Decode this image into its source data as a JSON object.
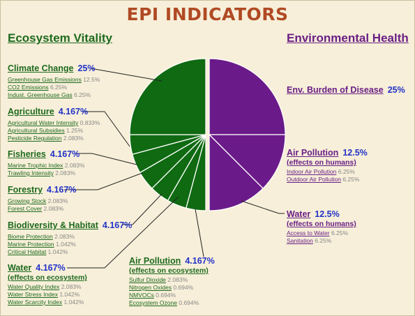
{
  "title": "EPI INDICATORS",
  "ecosystem_heading": "Ecosystem Vitality",
  "environment_heading": "Environmental Health",
  "colors": {
    "ecosystem": "#0f6a12",
    "environment": "#6b1a8a",
    "percent": "#2233c8",
    "title": "#b04a24"
  },
  "chart_data": {
    "type": "pie",
    "slices": [
      {
        "label": "Env. Burden of Disease",
        "value": 25,
        "group": "Environmental Health"
      },
      {
        "label": "Air Pollution (effects on humans)",
        "value": 12.5,
        "group": "Environmental Health"
      },
      {
        "label": "Water (effects on humans)",
        "value": 12.5,
        "group": "Environmental Health"
      },
      {
        "label": "Air Pollution (effects on ecosystem)",
        "value": 4.167,
        "group": "Ecosystem Vitality"
      },
      {
        "label": "Water (effects on ecosystem)",
        "value": 4.167,
        "group": "Ecosystem Vitality"
      },
      {
        "label": "Biodiversity & Habitat",
        "value": 4.167,
        "group": "Ecosystem Vitality"
      },
      {
        "label": "Forestry",
        "value": 4.167,
        "group": "Ecosystem Vitality"
      },
      {
        "label": "Fisheries",
        "value": 4.167,
        "group": "Ecosystem Vitality"
      },
      {
        "label": "Agriculture",
        "value": 4.167,
        "group": "Ecosystem Vitality"
      },
      {
        "label": "Climate Change",
        "value": 25,
        "group": "Ecosystem Vitality"
      }
    ]
  },
  "ecosystem": [
    {
      "name": "Climate Change",
      "pct": "25%",
      "items": [
        {
          "name": "Greenhouse Gas Emissions",
          "w": "12.5%"
        },
        {
          "name": "CO2 Emissions",
          "w": "6.25%"
        },
        {
          "name": "Indust. Greenhouse Gas",
          "w": "6.25%"
        }
      ]
    },
    {
      "name": "Agriculture",
      "pct": "4.167%",
      "items": [
        {
          "name": "Agricultural Water Intensity",
          "w": "0.833%"
        },
        {
          "name": "Agricultural Subsidies",
          "w": "1.25%"
        },
        {
          "name": "Pesticide Regulation",
          "w": "2.083%"
        }
      ]
    },
    {
      "name": "Fisheries",
      "pct": "4.167%",
      "items": [
        {
          "name": "Marine Trophic Index",
          "w": "2.083%"
        },
        {
          "name": "Trawling Intensity",
          "w": "2.083%"
        }
      ]
    },
    {
      "name": "Forestry",
      "pct": "4.167%",
      "items": [
        {
          "name": "Growing Stock",
          "w": "2.083%"
        },
        {
          "name": "Forest Cover",
          "w": "2.083%"
        }
      ]
    },
    {
      "name": "Biodiversity & Habitat",
      "pct": "4.167%",
      "items": [
        {
          "name": "Biome Protection",
          "w": "2.083%"
        },
        {
          "name": "Marine Protection",
          "w": "1.042%"
        },
        {
          "name": "Critical Habitat",
          "w": "1.042%"
        }
      ]
    },
    {
      "name": "Water",
      "pct": "4.167%",
      "sub": "(effects on ecosystem)",
      "items": [
        {
          "name": "Water Quality Index",
          "w": "2.083%"
        },
        {
          "name": "Water Stress Index",
          "w": "1.042%"
        },
        {
          "name": "Water Scarcity Index",
          "w": "1.042%"
        }
      ]
    },
    {
      "name": "Air Pollution",
      "pct": "4.167%",
      "sub": "(effects on ecosystem)",
      "items": [
        {
          "name": "Sulfur Dioxide",
          "w": "2.083%"
        },
        {
          "name": "Nitrogen Oxides",
          "w": "0.694%"
        },
        {
          "name": "NMVOCs",
          "w": "0.694%"
        },
        {
          "name": "Ecosystem Ozone",
          "w": "0.694%"
        }
      ]
    }
  ],
  "environment": [
    {
      "name": "Env. Burden of Disease",
      "pct": "25%",
      "items": []
    },
    {
      "name": "Air Pollution",
      "pct": "12.5%",
      "sub": "(effects on humans)",
      "items": [
        {
          "name": "Indoor Air Pollution",
          "w": "6.25%"
        },
        {
          "name": "Outdoor Air Pollution",
          "w": "6.25%"
        }
      ]
    },
    {
      "name": "Water",
      "pct": "12.5%",
      "sub": "(effects on humans)",
      "items": [
        {
          "name": "Access to Water",
          "w": "6.25%"
        },
        {
          "name": "Sanitation",
          "w": "6.25%"
        }
      ]
    }
  ]
}
